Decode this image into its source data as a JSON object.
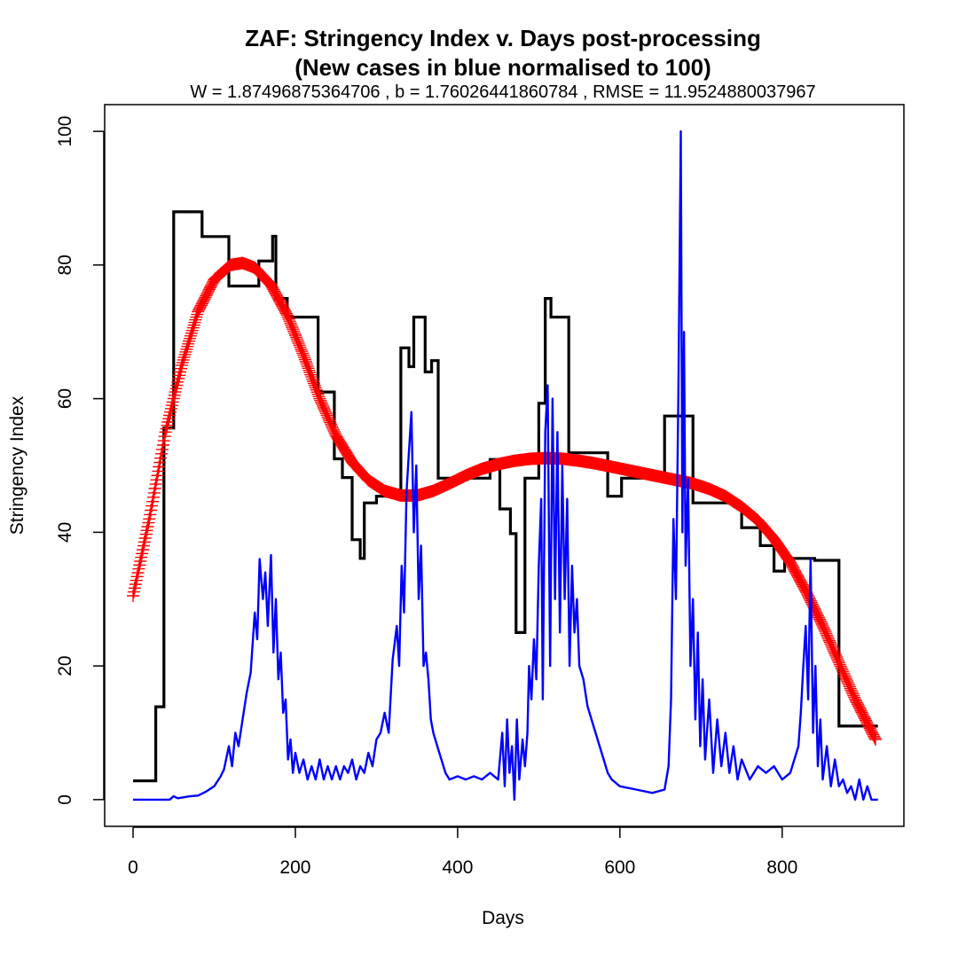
{
  "chart_data": {
    "type": "line",
    "title": "ZAF: Stringency Index v. Days post-processing",
    "title_line2": "(New cases in blue normalised to 100)",
    "subtitle": "W = 1.87496875364706 , b = 1.76026441860784 , RMSE = 11.9524880037967",
    "xlabel": "Days",
    "ylabel": "Stringency Index",
    "xlim": [
      -35,
      950
    ],
    "ylim": [
      -4,
      104
    ],
    "xticks": [
      0,
      200,
      400,
      600,
      800
    ],
    "yticks": [
      0,
      20,
      40,
      60,
      80,
      100
    ],
    "grid": false,
    "colors": {
      "stringency": "#000000",
      "fit": "#ff0000",
      "cases": "#0000ff"
    },
    "series": [
      {
        "key": "stringency",
        "style": "step",
        "points": [
          [
            0,
            2.8
          ],
          [
            28,
            2.8
          ],
          [
            28,
            13.9
          ],
          [
            38,
            13.9
          ],
          [
            38,
            55.6
          ],
          [
            50,
            55.6
          ],
          [
            50,
            87.96
          ],
          [
            85,
            87.96
          ],
          [
            85,
            84.26
          ],
          [
            118,
            84.26
          ],
          [
            118,
            76.85
          ],
          [
            155,
            76.85
          ],
          [
            155,
            80.6
          ],
          [
            172,
            80.6
          ],
          [
            172,
            84.3
          ],
          [
            176,
            84.3
          ],
          [
            176,
            75
          ],
          [
            190,
            75
          ],
          [
            190,
            72.2
          ],
          [
            228,
            72.2
          ],
          [
            228,
            61
          ],
          [
            248,
            61
          ],
          [
            248,
            51
          ],
          [
            258,
            51
          ],
          [
            258,
            48.2
          ],
          [
            270,
            48.2
          ],
          [
            270,
            38.9
          ],
          [
            280,
            38.9
          ],
          [
            280,
            36.1
          ],
          [
            285,
            36.1
          ],
          [
            285,
            44.4
          ],
          [
            300,
            44.4
          ],
          [
            300,
            45.4
          ],
          [
            315,
            45.4
          ],
          [
            315,
            46.3
          ],
          [
            330,
            46.3
          ],
          [
            330,
            67.6
          ],
          [
            340,
            67.6
          ],
          [
            340,
            64.8
          ],
          [
            346,
            64.8
          ],
          [
            346,
            72.2
          ],
          [
            360,
            72.2
          ],
          [
            360,
            64
          ],
          [
            368,
            64
          ],
          [
            368,
            65.7
          ],
          [
            376,
            65.7
          ],
          [
            376,
            48.1
          ],
          [
            440,
            48.1
          ],
          [
            440,
            50.9
          ],
          [
            452,
            50.9
          ],
          [
            452,
            43.5
          ],
          [
            465,
            43.5
          ],
          [
            465,
            39.8
          ],
          [
            472,
            39.8
          ],
          [
            472,
            25
          ],
          [
            483,
            25
          ],
          [
            483,
            48.1
          ],
          [
            500,
            48.1
          ],
          [
            500,
            59.3
          ],
          [
            508,
            59.3
          ],
          [
            508,
            75
          ],
          [
            515,
            75
          ],
          [
            515,
            72.2
          ],
          [
            537,
            72.2
          ],
          [
            537,
            51.9
          ],
          [
            585,
            51.9
          ],
          [
            585,
            45.4
          ],
          [
            602,
            45.4
          ],
          [
            602,
            48.1
          ],
          [
            655,
            48.1
          ],
          [
            655,
            57.4
          ],
          [
            690,
            57.4
          ],
          [
            690,
            44.4
          ],
          [
            750,
            44.4
          ],
          [
            750,
            40.7
          ],
          [
            773,
            40.7
          ],
          [
            773,
            38
          ],
          [
            790,
            38
          ],
          [
            790,
            34.2
          ],
          [
            803,
            34.2
          ],
          [
            803,
            36.1
          ],
          [
            840,
            36.1
          ],
          [
            840,
            35.8
          ],
          [
            870,
            35.8
          ],
          [
            870,
            11
          ],
          [
            918,
            11
          ]
        ]
      },
      {
        "key": "fit",
        "style": "plus-markers",
        "points": [
          [
            0,
            30.5
          ],
          [
            20,
            42
          ],
          [
            40,
            55
          ],
          [
            60,
            65
          ],
          [
            80,
            73
          ],
          [
            100,
            77.8
          ],
          [
            120,
            80
          ],
          [
            135,
            80.3
          ],
          [
            150,
            79.6
          ],
          [
            170,
            77
          ],
          [
            190,
            72.5
          ],
          [
            210,
            66.5
          ],
          [
            230,
            60
          ],
          [
            250,
            54.5
          ],
          [
            270,
            50.5
          ],
          [
            290,
            47.8
          ],
          [
            310,
            46.2
          ],
          [
            330,
            45.5
          ],
          [
            350,
            45.5
          ],
          [
            370,
            46.2
          ],
          [
            390,
            47.3
          ],
          [
            410,
            48.5
          ],
          [
            430,
            49.5
          ],
          [
            450,
            50.2
          ],
          [
            470,
            50.7
          ],
          [
            490,
            51
          ],
          [
            510,
            51.1
          ],
          [
            530,
            51
          ],
          [
            550,
            50.7
          ],
          [
            570,
            50.3
          ],
          [
            590,
            49.8
          ],
          [
            610,
            49.3
          ],
          [
            630,
            48.8
          ],
          [
            650,
            48.3
          ],
          [
            670,
            47.8
          ],
          [
            690,
            47.3
          ],
          [
            710,
            46.5
          ],
          [
            730,
            45.4
          ],
          [
            750,
            43.8
          ],
          [
            770,
            41.8
          ],
          [
            790,
            39
          ],
          [
            810,
            35.5
          ],
          [
            830,
            31
          ],
          [
            850,
            26
          ],
          [
            870,
            20.5
          ],
          [
            890,
            15
          ],
          [
            915,
            9
          ]
        ]
      },
      {
        "key": "cases",
        "style": "line",
        "points": [
          [
            0,
            0
          ],
          [
            45,
            0
          ],
          [
            50,
            0.5
          ],
          [
            55,
            0.2
          ],
          [
            60,
            0.3
          ],
          [
            70,
            0.5
          ],
          [
            80,
            0.6
          ],
          [
            90,
            1.2
          ],
          [
            100,
            2
          ],
          [
            108,
            3.5
          ],
          [
            112,
            4.5
          ],
          [
            118,
            8
          ],
          [
            122,
            5
          ],
          [
            126,
            10
          ],
          [
            130,
            8
          ],
          [
            135,
            12
          ],
          [
            140,
            16
          ],
          [
            145,
            19
          ],
          [
            150,
            28
          ],
          [
            153,
            24
          ],
          [
            156,
            36
          ],
          [
            160,
            30
          ],
          [
            163,
            34
          ],
          [
            166,
            26
          ],
          [
            170,
            36.6
          ],
          [
            173,
            22
          ],
          [
            176,
            30
          ],
          [
            179,
            18
          ],
          [
            182,
            22
          ],
          [
            185,
            13
          ],
          [
            188,
            15
          ],
          [
            191,
            6
          ],
          [
            194,
            9
          ],
          [
            197,
            4
          ],
          [
            200,
            7
          ],
          [
            205,
            4
          ],
          [
            210,
            6
          ],
          [
            215,
            3
          ],
          [
            220,
            5
          ],
          [
            225,
            3
          ],
          [
            230,
            6
          ],
          [
            235,
            3
          ],
          [
            240,
            5
          ],
          [
            245,
            3
          ],
          [
            250,
            5
          ],
          [
            255,
            3
          ],
          [
            260,
            5
          ],
          [
            265,
            4
          ],
          [
            270,
            6
          ],
          [
            275,
            3
          ],
          [
            280,
            5
          ],
          [
            285,
            4
          ],
          [
            290,
            7
          ],
          [
            295,
            5
          ],
          [
            300,
            9
          ],
          [
            305,
            10
          ],
          [
            310,
            13
          ],
          [
            315,
            10
          ],
          [
            320,
            21
          ],
          [
            325,
            26
          ],
          [
            328,
            20
          ],
          [
            331,
            35
          ],
          [
            334,
            28
          ],
          [
            337,
            46
          ],
          [
            340,
            52
          ],
          [
            343,
            58
          ],
          [
            346,
            40
          ],
          [
            349,
            50
          ],
          [
            352,
            30
          ],
          [
            355,
            38
          ],
          [
            358,
            20
          ],
          [
            361,
            22
          ],
          [
            364,
            18
          ],
          [
            367,
            12
          ],
          [
            370,
            10
          ],
          [
            375,
            8
          ],
          [
            380,
            6
          ],
          [
            385,
            4
          ],
          [
            390,
            3
          ],
          [
            400,
            3.5
          ],
          [
            410,
            3
          ],
          [
            420,
            3.5
          ],
          [
            430,
            3
          ],
          [
            440,
            4
          ],
          [
            450,
            3
          ],
          [
            455,
            10
          ],
          [
            458,
            2
          ],
          [
            461,
            12
          ],
          [
            464,
            4
          ],
          [
            467,
            8
          ],
          [
            470,
            0
          ],
          [
            473,
            12
          ],
          [
            476,
            3
          ],
          [
            480,
            9
          ],
          [
            483,
            5
          ],
          [
            486,
            10
          ],
          [
            488,
            20
          ],
          [
            491,
            15
          ],
          [
            494,
            24
          ],
          [
            497,
            18
          ],
          [
            500,
            35
          ],
          [
            503,
            45
          ],
          [
            505,
            15
          ],
          [
            508,
            55
          ],
          [
            511,
            62
          ],
          [
            514,
            20
          ],
          [
            517,
            60
          ],
          [
            520,
            30
          ],
          [
            523,
            55
          ],
          [
            526,
            25
          ],
          [
            529,
            50
          ],
          [
            532,
            30
          ],
          [
            535,
            45
          ],
          [
            538,
            20
          ],
          [
            541,
            35
          ],
          [
            544,
            25
          ],
          [
            547,
            30
          ],
          [
            550,
            20
          ],
          [
            555,
            18
          ],
          [
            560,
            14
          ],
          [
            565,
            12
          ],
          [
            570,
            10
          ],
          [
            575,
            8
          ],
          [
            580,
            6
          ],
          [
            585,
            4
          ],
          [
            590,
            3
          ],
          [
            600,
            2
          ],
          [
            620,
            1.5
          ],
          [
            640,
            1
          ],
          [
            655,
            1.5
          ],
          [
            660,
            5
          ],
          [
            663,
            15
          ],
          [
            666,
            42
          ],
          [
            669,
            30
          ],
          [
            672,
            60
          ],
          [
            675,
            100
          ],
          [
            677,
            40
          ],
          [
            679,
            70
          ],
          [
            681,
            35
          ],
          [
            684,
            48
          ],
          [
            687,
            20
          ],
          [
            690,
            30
          ],
          [
            693,
            12
          ],
          [
            696,
            25
          ],
          [
            699,
            8
          ],
          [
            702,
            18
          ],
          [
            705,
            6
          ],
          [
            710,
            15
          ],
          [
            715,
            4
          ],
          [
            720,
            12
          ],
          [
            725,
            5
          ],
          [
            730,
            10
          ],
          [
            735,
            4
          ],
          [
            740,
            8
          ],
          [
            745,
            3
          ],
          [
            750,
            6
          ],
          [
            760,
            3
          ],
          [
            770,
            5
          ],
          [
            780,
            4
          ],
          [
            790,
            5
          ],
          [
            800,
            3
          ],
          [
            810,
            4
          ],
          [
            820,
            8
          ],
          [
            823,
            13
          ],
          [
            826,
            20
          ],
          [
            829,
            26
          ],
          [
            832,
            15
          ],
          [
            835,
            36
          ],
          [
            838,
            10
          ],
          [
            841,
            20
          ],
          [
            844,
            5
          ],
          [
            847,
            12
          ],
          [
            850,
            3
          ],
          [
            855,
            8
          ],
          [
            860,
            2
          ],
          [
            865,
            6
          ],
          [
            870,
            2
          ],
          [
            875,
            3
          ],
          [
            880,
            1
          ],
          [
            885,
            2
          ],
          [
            890,
            0
          ],
          [
            895,
            3
          ],
          [
            900,
            0
          ],
          [
            905,
            2
          ],
          [
            910,
            0
          ],
          [
            918,
            0
          ]
        ]
      }
    ]
  }
}
